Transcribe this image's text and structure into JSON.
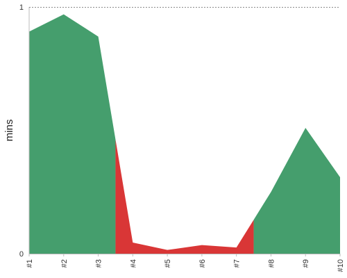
{
  "chart_data": {
    "type": "area",
    "title": "",
    "xlabel": "",
    "ylabel": "mins",
    "ylim": [
      0,
      1
    ],
    "y_ticks": [
      "0",
      "1"
    ],
    "categories": [
      "#1",
      "#2",
      "#3",
      "#4",
      "#5",
      "#6",
      "#7",
      "#8",
      "#9",
      "#10"
    ],
    "values": [
      0.9,
      0.97,
      0.88,
      0.045,
      0.015,
      0.035,
      0.025,
      0.25,
      0.51,
      0.31
    ],
    "category_state": [
      "good",
      "good",
      "good",
      "bad",
      "bad",
      "bad",
      "bad",
      "good",
      "good",
      "good"
    ],
    "colors": {
      "good": "#459e6d",
      "bad": "#d93636",
      "axis": "#bbbbbb",
      "reference_line": "#888888",
      "text": "#333333"
    },
    "reference_line": {
      "value": 1,
      "style": "dotted"
    },
    "grid": false,
    "legend": "none"
  }
}
